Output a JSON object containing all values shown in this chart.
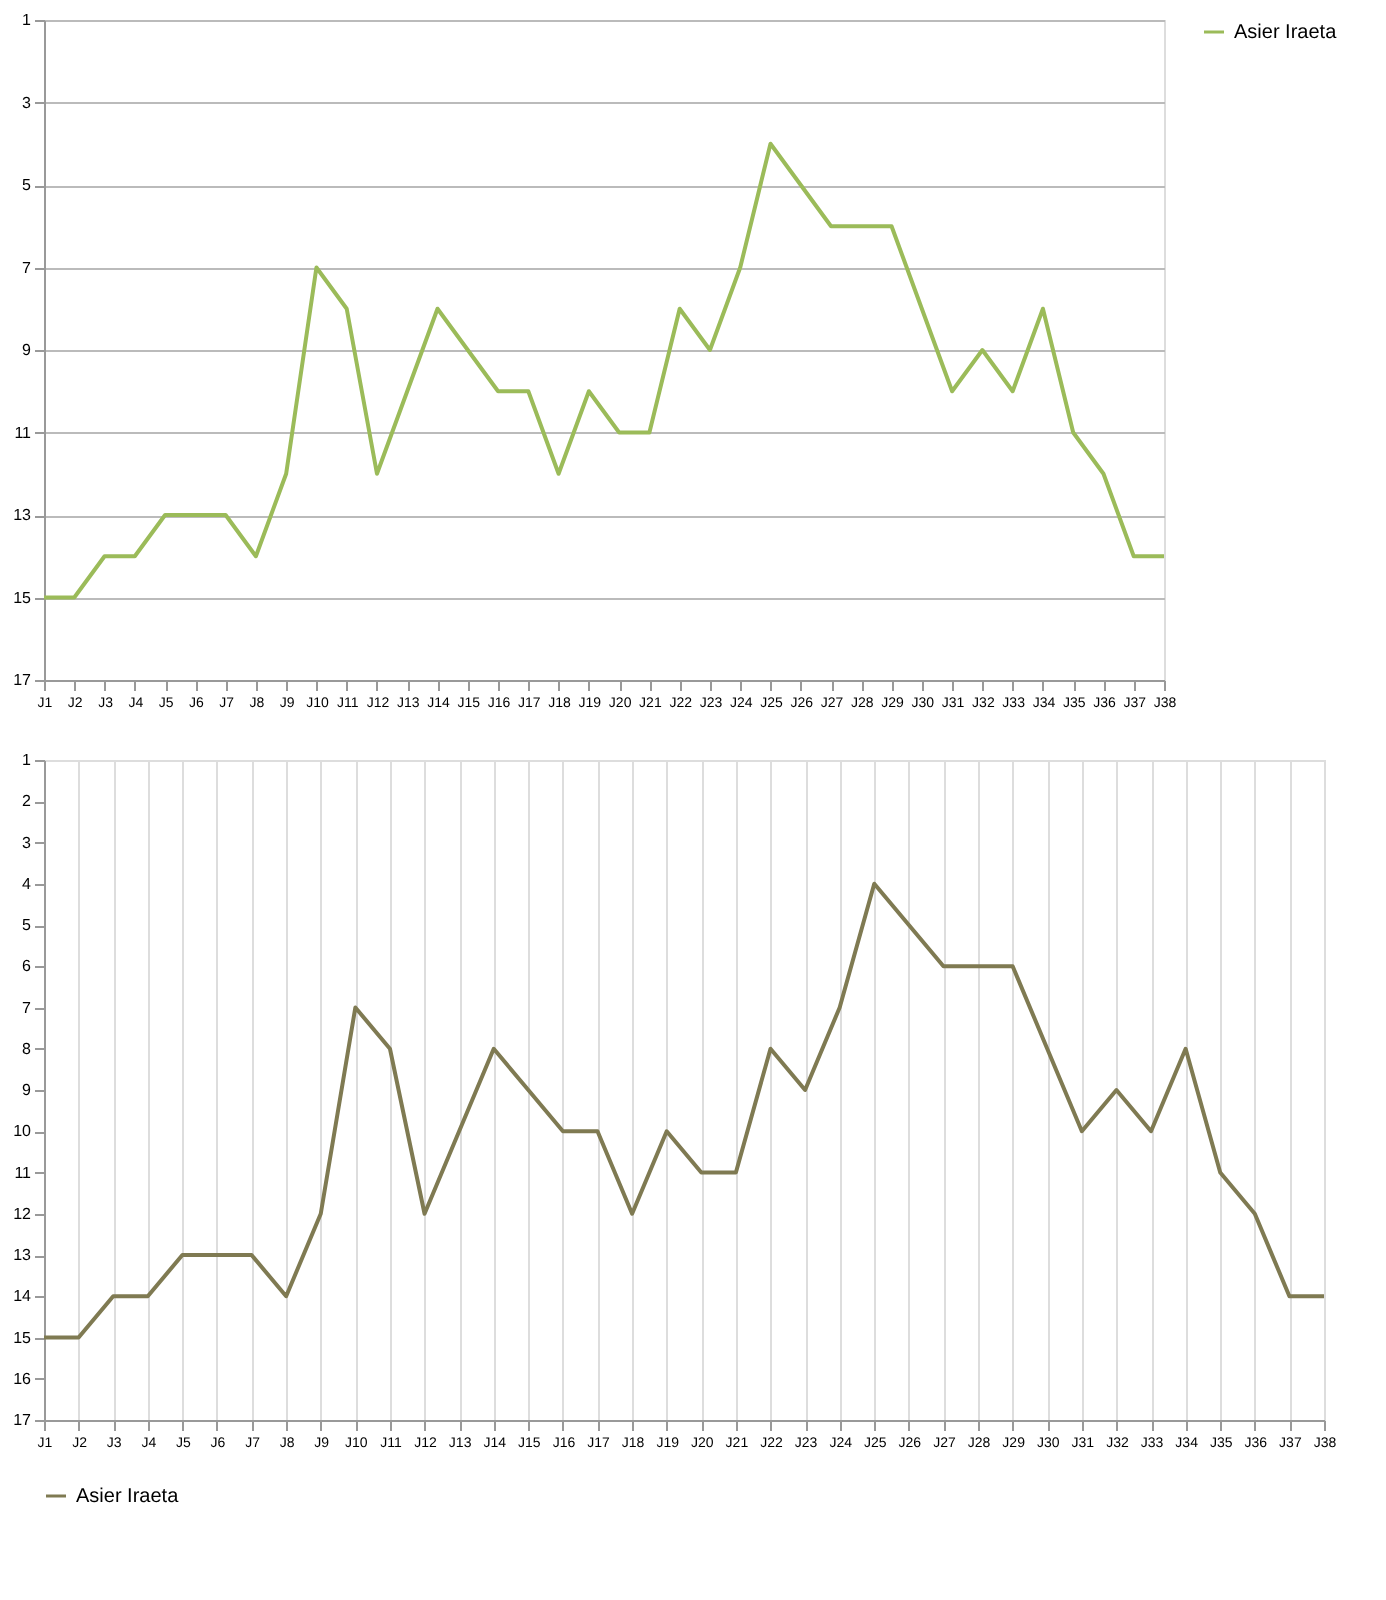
{
  "chart_data": [
    {
      "type": "line",
      "categories": [
        "J1",
        "J2",
        "J3",
        "J4",
        "J5",
        "J6",
        "J7",
        "J8",
        "J9",
        "J10",
        "J11",
        "J12",
        "J13",
        "J14",
        "J15",
        "J16",
        "J17",
        "J18",
        "J19",
        "J20",
        "J21",
        "J22",
        "J23",
        "J24",
        "J25",
        "J26",
        "J27",
        "J28",
        "J29",
        "J30",
        "J31",
        "J32",
        "J33",
        "J34",
        "J35",
        "J36",
        "J37",
        "J38"
      ],
      "series": [
        {
          "name": "Asier Iraeta",
          "color": "#9bbb59",
          "values": [
            15,
            15,
            14,
            14,
            13,
            13,
            13,
            14,
            12,
            7,
            8,
            12,
            10,
            8,
            9,
            10,
            10,
            12,
            10,
            11,
            11,
            8,
            9,
            7,
            4,
            5,
            6,
            6,
            6,
            8,
            10,
            9,
            10,
            8,
            11,
            12,
            14,
            14
          ]
        }
      ],
      "ylim": [
        17,
        1
      ],
      "yticks": [
        1,
        3,
        5,
        7,
        9,
        11,
        13,
        15,
        17
      ],
      "grid": "y",
      "legend": "right",
      "marker": "none",
      "line_style": "solid"
    },
    {
      "type": "line",
      "categories": [
        "J1",
        "J2",
        "J3",
        "J4",
        "J5",
        "J6",
        "J7",
        "J8",
        "J9",
        "J10",
        "J11",
        "J12",
        "J13",
        "J14",
        "J15",
        "J16",
        "J17",
        "J18",
        "J19",
        "J20",
        "J21",
        "J22",
        "J23",
        "J24",
        "J25",
        "J26",
        "J27",
        "J28",
        "J29",
        "J30",
        "J31",
        "J32",
        "J33",
        "J34",
        "J35",
        "J36",
        "J37",
        "J38"
      ],
      "series": [
        {
          "name": "Asier Iraeta",
          "color": "#7f7a52",
          "values": [
            15,
            15,
            14,
            14,
            13,
            13,
            13,
            14,
            12,
            7,
            8,
            12,
            10,
            8,
            9,
            10,
            10,
            12,
            10,
            11,
            11,
            8,
            9,
            7,
            4,
            5,
            6,
            6,
            6,
            8,
            10,
            9,
            10,
            8,
            11,
            12,
            14,
            14
          ]
        }
      ],
      "ylim": [
        17,
        1
      ],
      "yticks": [
        1,
        2,
        3,
        4,
        5,
        6,
        7,
        8,
        9,
        10,
        11,
        12,
        13,
        14,
        15,
        16,
        17
      ],
      "grid": "x",
      "legend": "bottom",
      "marker": "none",
      "line_style": "solid"
    }
  ]
}
